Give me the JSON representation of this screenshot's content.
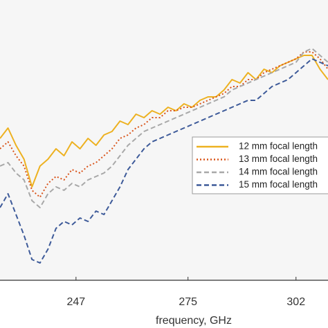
{
  "chart_data": {
    "type": "line",
    "x_label": "frequency, GHz",
    "x": [
      228,
      230,
      232,
      234,
      236,
      238,
      240,
      242,
      244,
      246,
      248,
      250,
      252,
      254,
      256,
      258,
      260,
      262,
      264,
      266,
      268,
      270,
      272,
      274,
      276,
      278,
      280,
      282,
      284,
      286,
      288,
      290,
      292,
      294,
      296,
      298,
      300,
      302,
      304,
      306,
      308,
      310
    ],
    "series": [
      {
        "name": "12 mm focal length",
        "color": "#edb120",
        "dash": "solid",
        "values": [
          41,
          44,
          39,
          35,
          27,
          33,
          35,
          38,
          36,
          40,
          38,
          41,
          39,
          42,
          43,
          46,
          45,
          48,
          47,
          49,
          48,
          50,
          49,
          51,
          50,
          52,
          53,
          53,
          55,
          58,
          57,
          60,
          58,
          61,
          60,
          62,
          63,
          64,
          65,
          65,
          61,
          58
        ]
      },
      {
        "name": "13 mm focal length",
        "color": "#d95319",
        "dash": "dotted",
        "values": [
          38,
          40,
          36,
          33,
          26,
          24,
          28,
          30,
          29,
          32,
          31,
          33,
          34,
          36,
          38,
          41,
          42,
          44,
          45,
          47,
          47,
          49,
          49,
          50,
          50,
          51,
          52,
          53,
          54,
          56,
          56,
          58,
          58,
          60,
          61,
          62,
          63,
          64,
          66,
          66,
          64,
          61
        ]
      },
      {
        "name": "14 mm focal length",
        "color": "#a8a8a8",
        "dash": "dashed",
        "values": [
          33,
          34,
          31,
          29,
          23,
          21,
          25,
          27,
          26,
          28,
          27,
          29,
          30,
          31,
          33,
          36,
          39,
          41,
          43,
          44,
          45,
          46,
          47,
          48,
          49,
          50,
          51,
          52,
          53,
          55,
          56,
          57,
          58,
          59,
          60,
          61,
          62,
          63,
          66,
          67,
          65,
          63
        ]
      },
      {
        "name": "15 mm focal length",
        "color": "#3d5a99",
        "dash": "dashed",
        "values": [
          21,
          25,
          19,
          13,
          6,
          5,
          9,
          15,
          17,
          16,
          18,
          17,
          20,
          19,
          23,
          27,
          32,
          35,
          38,
          40,
          41,
          42,
          43,
          44,
          45,
          46,
          47,
          48,
          49,
          50,
          51,
          52,
          52,
          54,
          56,
          57,
          58,
          60,
          62,
          64,
          63,
          62
        ]
      }
    ],
    "xlim": [
      228,
      310
    ],
    "xticks": [
      247,
      275,
      302
    ],
    "ylim": [
      0,
      81
    ],
    "legend": "right"
  }
}
